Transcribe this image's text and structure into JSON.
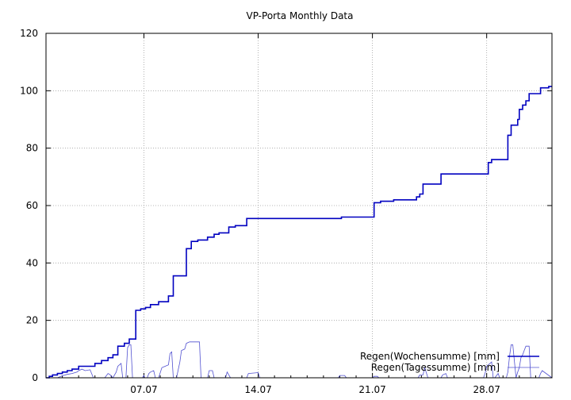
{
  "chart_data": {
    "type": "line",
    "title": "VP-Porta Monthly Data",
    "xlabel": "",
    "ylabel": "",
    "xlim": [
      1,
      32
    ],
    "ylim": [
      0,
      120
    ],
    "yticks": [
      0,
      20,
      40,
      60,
      80,
      100,
      120
    ],
    "xticks": [
      {
        "value": 7,
        "label": "07.07"
      },
      {
        "value": 14,
        "label": "14.07"
      },
      {
        "value": 21,
        "label": "21.07"
      },
      {
        "value": 28,
        "label": "28.07"
      }
    ],
    "grid": true,
    "legend_position": "bottom-right",
    "series": [
      {
        "name": "Regen(Wochensumme) [mm]",
        "color": "#0000c0",
        "width": 1.6,
        "style": "step",
        "x": [
          1,
          1.2,
          1.4,
          1.7,
          2.0,
          2.3,
          2.6,
          3.0,
          3.5,
          4.0,
          4.4,
          4.8,
          5.1,
          5.4,
          5.8,
          6.1,
          6.5,
          6.8,
          7.1,
          7.4,
          7.9,
          8.5,
          8.8,
          9.3,
          9.6,
          9.9,
          10.3,
          10.9,
          11.3,
          11.6,
          12.2,
          12.6,
          13.3,
          17.8,
          19.1,
          19.6,
          21.1,
          21.5,
          22.3,
          23.0,
          23.7,
          23.9,
          24.1,
          25.2,
          27.9,
          28.1,
          28.3,
          29.3,
          29.5,
          29.9,
          30.0,
          30.2,
          30.4,
          30.6,
          31.3,
          31.8,
          32
        ],
        "values": [
          0,
          0.5,
          1.0,
          1.5,
          2.0,
          2.5,
          3.0,
          4.0,
          4.0,
          5.0,
          6.0,
          7.0,
          8.0,
          11.0,
          12.0,
          13.5,
          23.5,
          24.0,
          24.5,
          25.5,
          26.5,
          28.5,
          35.5,
          35.5,
          45.0,
          47.5,
          48.0,
          49.0,
          50.0,
          50.5,
          52.5,
          53.0,
          55.5,
          55.5,
          56.0,
          56.0,
          61.0,
          61.5,
          62.0,
          62.0,
          63.0,
          64.0,
          67.5,
          71.0,
          71.0,
          75.0,
          76.0,
          84.5,
          88.0,
          90.0,
          93.5,
          95.0,
          96.5,
          99.0,
          101.0,
          101.5,
          101.5
        ]
      },
      {
        "name": "Regen(Tagessumme) [mm]",
        "color": "#5050d0",
        "width": 0.8,
        "style": "line",
        "x": [
          1,
          1.7,
          2.0,
          2.3,
          2.6,
          2.9,
          3.0,
          3.2,
          3.4,
          3.7,
          3.9,
          4.6,
          4.8,
          4.9,
          5.1,
          5.3,
          5.4,
          5.5,
          5.6,
          5.7,
          5.9,
          6.0,
          6.1,
          6.2,
          6.3,
          6.9,
          7.0,
          7.05,
          7.2,
          7.3,
          7.4,
          7.6,
          7.7,
          7.9,
          8.1,
          8.3,
          8.5,
          8.6,
          8.7,
          8.8,
          9.0,
          9.2,
          9.3,
          9.5,
          9.6,
          9.8,
          10.4,
          10.5,
          10.6,
          10.9,
          11.0,
          11.2,
          11.3,
          11.4,
          12.0,
          12.1,
          12.3,
          12.4,
          13.3,
          13.4,
          14.0,
          14.1,
          18.9,
          19.0,
          19.3,
          19.4,
          21.0,
          21.1,
          21.3,
          21.4,
          23.8,
          23.9,
          24.1,
          24.2,
          24.4,
          25.2,
          25.3,
          25.5,
          25.6,
          27.8,
          27.9,
          28.0,
          28.2,
          28.3,
          28.4,
          28.5,
          28.7,
          28.8,
          29.2,
          29.3,
          29.4,
          29.5,
          29.6,
          29.8,
          29.9,
          30.0,
          30.1,
          30.2,
          30.3,
          30.4,
          30.6,
          30.7,
          31.2,
          31.3,
          31.4,
          32
        ],
        "values": [
          0,
          0,
          0.7,
          1.2,
          1.5,
          2.0,
          2.5,
          3.0,
          2.5,
          2.8,
          0,
          0,
          1.5,
          1.2,
          0,
          2.0,
          4.0,
          4.5,
          5.0,
          0,
          0,
          10.5,
          11.5,
          11.5,
          0,
          0,
          0.8,
          0,
          0,
          1.5,
          2.0,
          2.5,
          0,
          0,
          3.5,
          4.0,
          4.5,
          8.5,
          9.0,
          0,
          0,
          5.5,
          9.5,
          10.0,
          12.0,
          12.5,
          12.5,
          0,
          0,
          0,
          2.5,
          2.5,
          0,
          0,
          0,
          2.0,
          0,
          0,
          0,
          1.5,
          1.8,
          0,
          0,
          0.8,
          0.8,
          0,
          0,
          0.5,
          0.5,
          0,
          0,
          1.0,
          1.0,
          3.5,
          0,
          0,
          1.0,
          1.5,
          0,
          0,
          1.5,
          4.0,
          5.0,
          5.5,
          0,
          0,
          1.5,
          0,
          0,
          2.0,
          7.5,
          11.5,
          11.5,
          0,
          2.0,
          3.5,
          7.0,
          8.0,
          9.5,
          11.0,
          11.0,
          0,
          0,
          1.5,
          2.5,
          0
        ]
      }
    ]
  }
}
